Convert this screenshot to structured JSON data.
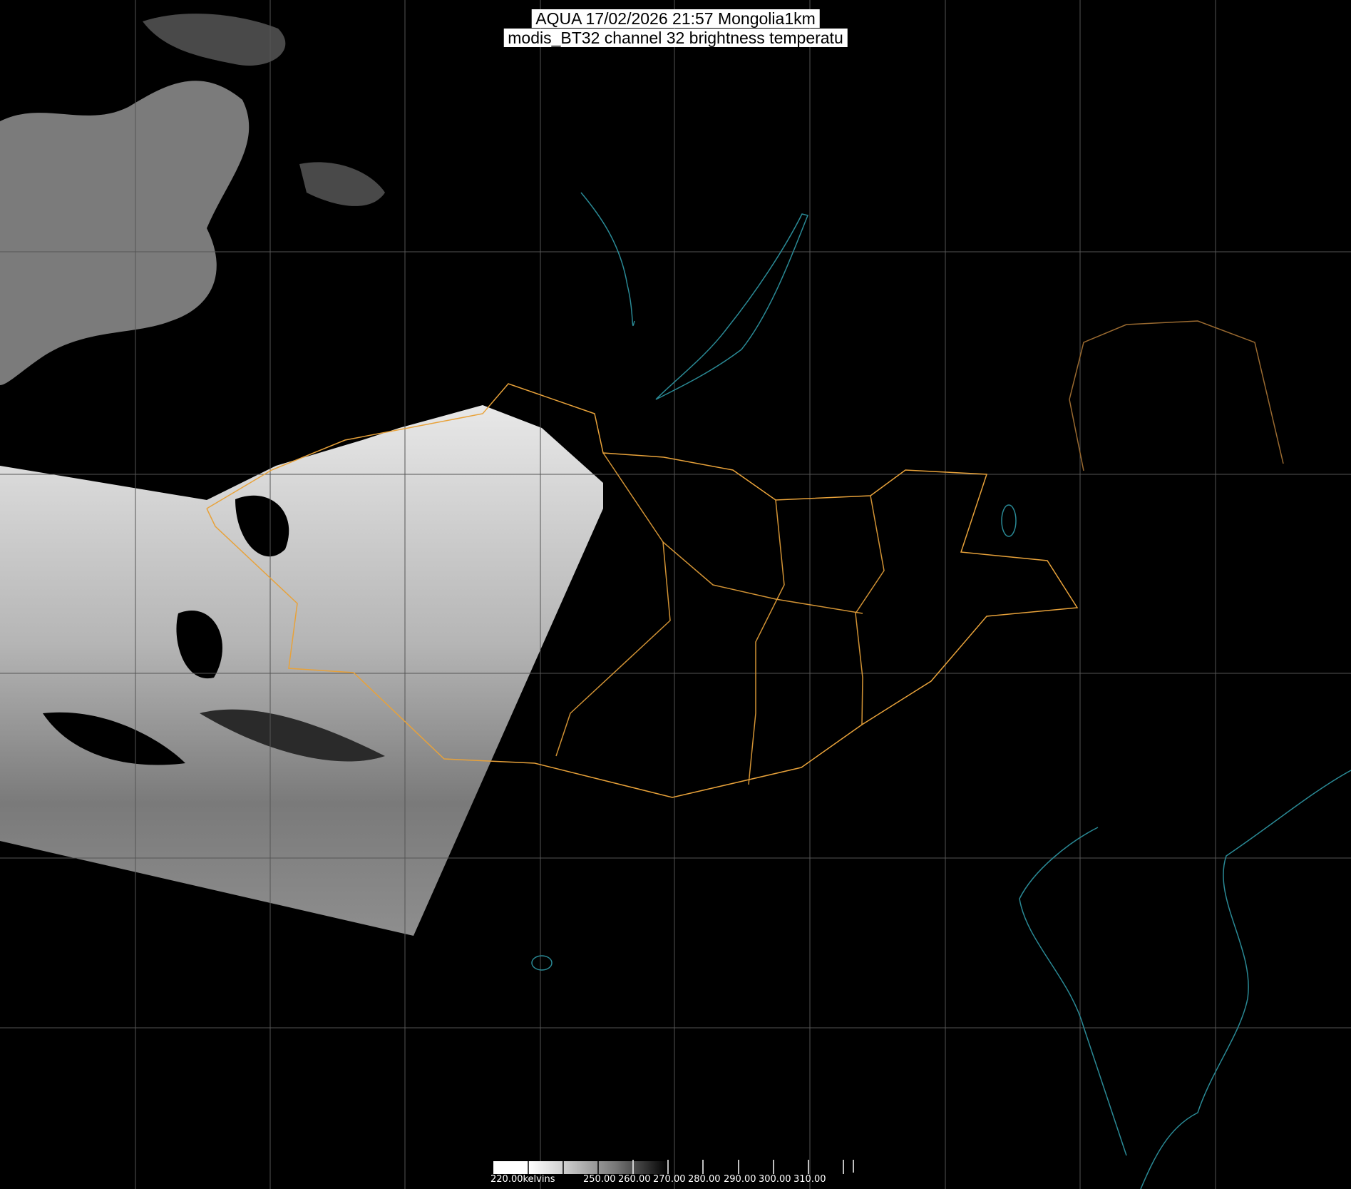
{
  "title": {
    "line1": "AQUA 17/02/2026 21:57 Mongolia1km",
    "line2": "modis_BT32 channel 32 brightness temperatu"
  },
  "colorbar": {
    "unit_label": "220.00kelvins",
    "tick_labels": [
      "250.00",
      "260.00",
      "270.00",
      "280.00",
      "290.00",
      "300.00",
      "310.00"
    ],
    "range_kelvin": [
      220,
      320
    ],
    "gradient": "white (cold) to black (warm)"
  },
  "colors": {
    "background": "#000000",
    "borders": "#e8a23a",
    "coastlines": "#2a8a96",
    "graticule": "#555555"
  }
}
